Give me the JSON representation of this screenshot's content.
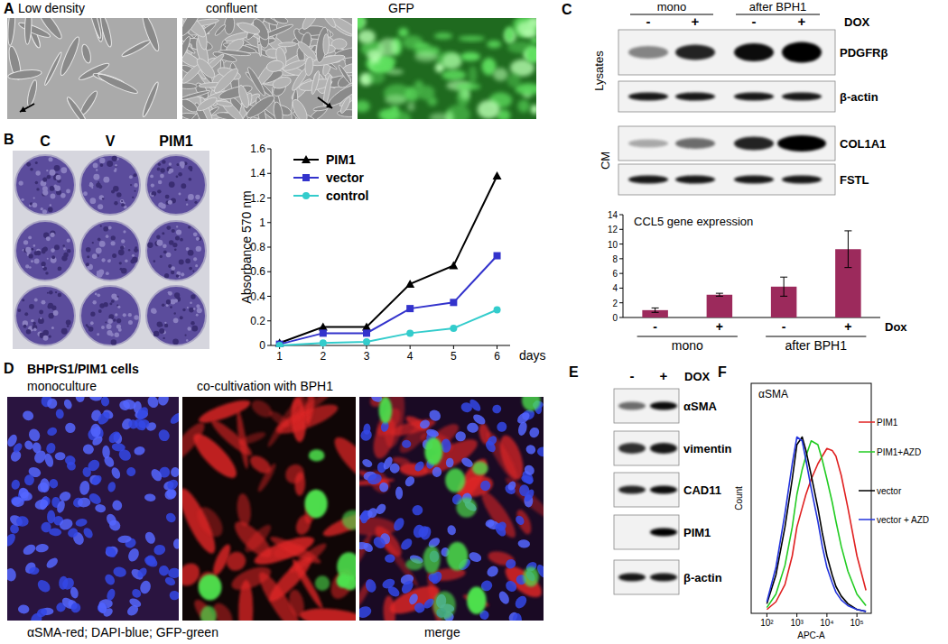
{
  "panels": {
    "A": {
      "label": "A",
      "images": [
        "Low density",
        "confluent",
        "GFP"
      ]
    },
    "B": {
      "label": "B",
      "wells": [
        "C",
        "V",
        "PIM1"
      ]
    },
    "C": {
      "label": "C",
      "groups": [
        "mono",
        "after BPH1"
      ],
      "treatment": "DOX",
      "lanes": [
        "-",
        "+",
        "-",
        "+"
      ],
      "sections": [
        {
          "name": "Lysates",
          "rows": [
            "PDGFRβ",
            "β-actin"
          ]
        },
        {
          "name": "CM",
          "rows": [
            "COL1A1",
            "FSTL"
          ]
        }
      ]
    },
    "D": {
      "label": "D",
      "title": "BHPrS1/PIM1 cells",
      "images": [
        "monoculture",
        "co-cultivation with BPH1"
      ],
      "caption": "αSMA-red; DAPI-blue; GFP-green",
      "merge": "merge"
    },
    "E": {
      "label": "E",
      "lanes": [
        "-",
        "+"
      ],
      "treatment": "DOX",
      "rows": [
        "αSMA",
        "vimentin",
        "CAD11",
        "PIM1",
        "β-actin"
      ]
    },
    "F": {
      "label": "F"
    }
  },
  "chart_data": [
    {
      "type": "line",
      "x_label": "days",
      "y_label": "Absorbance 570 nm",
      "x": [
        1,
        2,
        3,
        4,
        5,
        6
      ],
      "xlim": [
        0.8,
        6.3
      ],
      "xticks": [
        1,
        2,
        3,
        4,
        5,
        6
      ],
      "ylim": [
        0,
        1.6
      ],
      "yticks": [
        0,
        0.2,
        0.4,
        0.6,
        0.8,
        1,
        1.2,
        1.4,
        1.6
      ],
      "legend": "upper left",
      "series": [
        {
          "name": "PIM1",
          "color": "#000000",
          "marker": "triangle",
          "values": [
            0.02,
            0.15,
            0.15,
            0.5,
            0.65,
            1.38
          ]
        },
        {
          "name": "vector",
          "color": "#3333cc",
          "marker": "square",
          "values": [
            0.01,
            0.1,
            0.1,
            0.3,
            0.35,
            0.73
          ]
        },
        {
          "name": "control",
          "color": "#33cccc",
          "marker": "circle",
          "values": [
            0,
            0.02,
            0.03,
            0.1,
            0.14,
            0.29
          ]
        }
      ]
    },
    {
      "type": "bar",
      "title": "CCL5 gene expression",
      "categories": [
        "-",
        "+",
        "-",
        "+"
      ],
      "values": [
        1,
        3.1,
        4.2,
        9.3
      ],
      "errors": [
        0.3,
        0.2,
        1.3,
        2.5
      ],
      "color": "#9c2a5c",
      "ylim": [
        0,
        14
      ],
      "yticks": [
        0,
        2,
        4,
        6,
        8,
        10,
        12,
        14
      ],
      "x_label": "Dox",
      "groups": [
        "mono",
        "after BPH1"
      ]
    },
    {
      "type": "line",
      "title": "αSMA",
      "x_label": "APC-A",
      "y_label": "Count",
      "log": "x",
      "x": [
        100,
        200,
        400,
        700,
        1000,
        1500,
        2000,
        3000,
        5000,
        7000,
        10000,
        15000,
        20000,
        30000,
        50000,
        100000,
        200000
      ],
      "xlim": [
        30,
        300000
      ],
      "xticks": [
        {
          "value": 100,
          "label": "10²"
        },
        {
          "value": 1000,
          "label": "10³"
        },
        {
          "value": 10000,
          "label": "10⁴"
        },
        {
          "value": 100000,
          "label": "10⁵"
        }
      ],
      "ylim": [
        0,
        120
      ],
      "tick_labels": "x",
      "legend": "right",
      "series": [
        {
          "name": "PIM1",
          "color": "#e02020",
          "values": [
            2,
            6,
            15,
            30,
            45,
            55,
            62,
            70,
            78,
            82,
            86,
            85,
            82,
            72,
            55,
            30,
            12
          ]
        },
        {
          "name": "PIM1+AZD",
          "color": "#22cc22",
          "values": [
            3,
            10,
            25,
            45,
            62,
            75,
            82,
            90,
            88,
            80,
            70,
            58,
            48,
            35,
            22,
            10,
            4
          ]
        },
        {
          "name": "vector",
          "color": "#000000",
          "values": [
            5,
            20,
            45,
            70,
            88,
            92,
            85,
            72,
            55,
            42,
            30,
            20,
            14,
            9,
            5,
            2,
            1
          ]
        },
        {
          "name": "vector + AZD",
          "color": "#2233dd",
          "values": [
            6,
            24,
            52,
            78,
            92,
            90,
            80,
            65,
            48,
            35,
            24,
            16,
            11,
            7,
            4,
            2,
            1
          ]
        }
      ]
    }
  ]
}
